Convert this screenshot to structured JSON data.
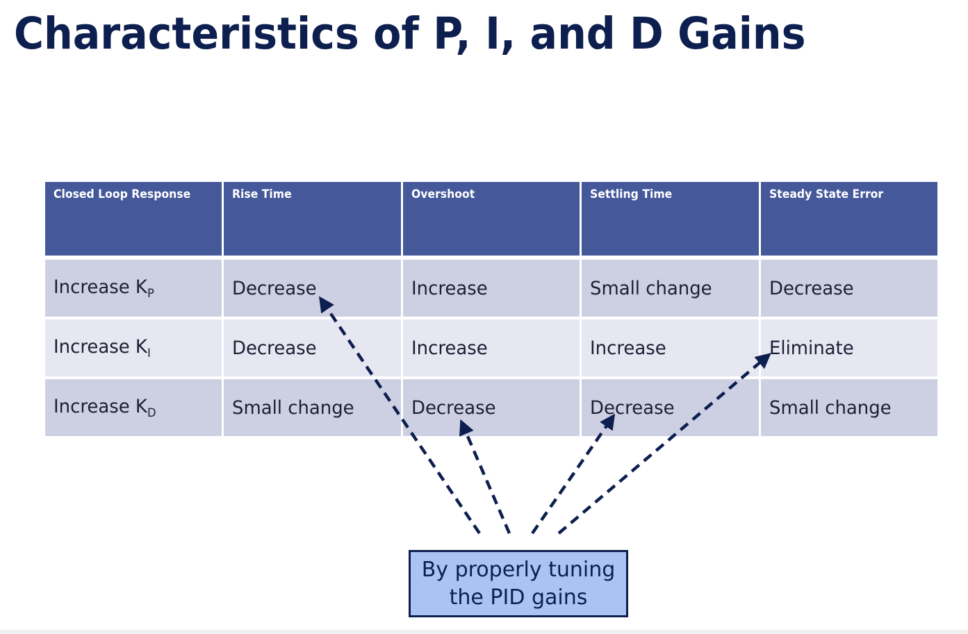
{
  "title": "Characteristics of P, I, and D Gains",
  "table": {
    "headers": [
      "Closed Loop Response",
      "Rise Time",
      "Overshoot",
      "Settling Time",
      "Steady State Error"
    ],
    "rows": [
      {
        "action": "Increase K",
        "subscript": "P",
        "cells": [
          "Decrease",
          "Increase",
          "Small change",
          "Decrease"
        ]
      },
      {
        "action": "Increase K",
        "subscript": "I",
        "cells": [
          "Decrease",
          "Increase",
          "Increase",
          "Eliminate"
        ]
      },
      {
        "action": "Increase K",
        "subscript": "D",
        "cells": [
          "Small change",
          "Decrease",
          "Decrease",
          "Small change"
        ]
      }
    ]
  },
  "callout": {
    "line1": "By properly tuning",
    "line2": "the PID gains"
  },
  "colors": {
    "title": "#0d1f4f",
    "header_bg": "#44589a",
    "row_odd": "#cdd0e3",
    "row_even": "#e6e7f1",
    "callout_bg": "#a9c4f2",
    "arrow": "#0d1f4f"
  }
}
